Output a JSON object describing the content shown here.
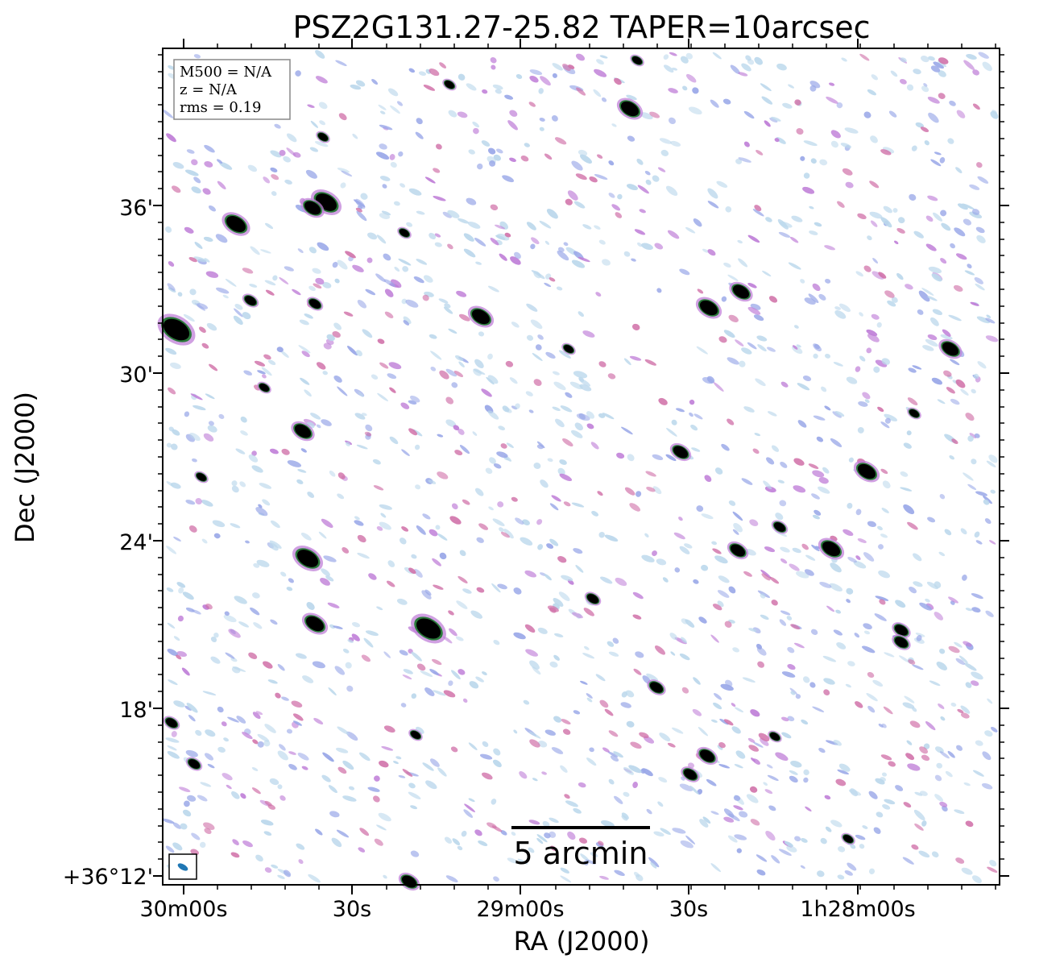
{
  "chart_data": {
    "type": "heatmap",
    "title": "PSZ2G131.27-25.82 TAPER=10arcsec",
    "xlabel": "RA (J2000)",
    "ylabel": "Dec (J2000)",
    "x_ticks": [
      "30m00s",
      "30s",
      "29m00s",
      "30s",
      "1h28m00s"
    ],
    "y_ticks": [
      "+36°12'",
      "18'",
      "24'",
      "30'",
      "36'"
    ],
    "info_box": [
      "M500 = N/A",
      "z = N/A",
      "rms = 0.19"
    ],
    "scalebar_label": "5 arcmin",
    "colormap": [
      "#bcd8ec",
      "#9aa8e8",
      "#c080d8",
      "#d070a8",
      "#2a7a3a",
      "#000000"
    ],
    "beam_color": "#1f77b4"
  }
}
